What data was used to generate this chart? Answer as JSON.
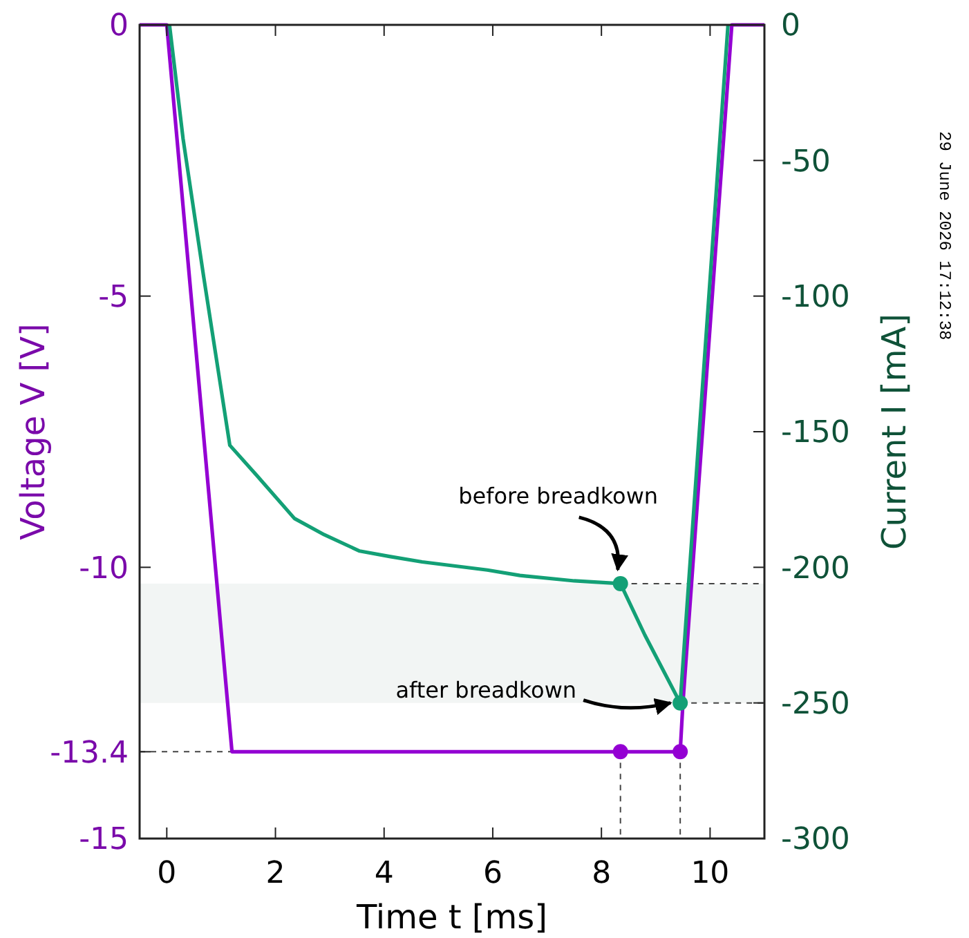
{
  "chart_data": {
    "type": "line",
    "xlabel": "Time t [ms]",
    "ylabel": "Voltage V [V]",
    "y2label": "Current I [mA]",
    "xlim": [
      -0.5,
      11
    ],
    "xticks": [
      0,
      2,
      4,
      6,
      8,
      10
    ],
    "ylim": [
      -15,
      0
    ],
    "yticks": [
      0,
      -5,
      -10,
      -13.4,
      -15
    ],
    "y2lim": [
      -300,
      0
    ],
    "y2ticks": [
      0,
      -50,
      -100,
      -150,
      -200,
      -250,
      -300
    ],
    "marker": "none",
    "line_style": "solid",
    "bands": [
      {
        "axis": "y2",
        "from": -250,
        "to": -206,
        "color": "#f2f5f4"
      }
    ],
    "ref_lines": [
      {
        "axis": "y",
        "value": -13.4,
        "color": "#444444",
        "line_style": "dashed"
      },
      {
        "axis": "x",
        "value": 8.35,
        "color": "#444444",
        "line_style": "dashed"
      },
      {
        "axis": "x",
        "value": 9.45,
        "color": "#444444",
        "line_style": "dashed"
      },
      {
        "axis": "y2",
        "value": -206,
        "color": "#444444",
        "line_style": "dashed"
      },
      {
        "axis": "y2",
        "value": -250,
        "color": "#444444",
        "line_style": "dashed"
      }
    ],
    "series": [
      {
        "axis": "y",
        "color": "#9400d3",
        "x": [
          -0.5,
          0,
          1.2,
          9.45,
          9.5,
          10.4,
          11
        ],
        "values": [
          0,
          0,
          -13.4,
          -13.4,
          -12.5,
          0,
          0
        ]
      },
      {
        "axis": "y2",
        "color": "#13a076",
        "x": [
          0.05,
          0.3,
          0.68,
          1.16,
          1.65,
          2.35,
          2.9,
          3.55,
          4.1,
          4.7,
          5.9,
          6.5,
          7.5,
          8.35,
          8.8,
          9.45,
          10.33
        ],
        "values": [
          0,
          -42,
          -93,
          -155,
          -166,
          -182,
          -188,
          -194,
          -196,
          -198,
          -201,
          -203,
          -205,
          -206,
          -225,
          -250,
          0
        ]
      },
      {
        "type": "scatter",
        "axis": "y",
        "color": "#9400d3",
        "marker": "circle",
        "x": [
          8.35,
          9.45
        ],
        "values": [
          -13.4,
          -13.4
        ]
      },
      {
        "type": "scatter",
        "axis": "y2",
        "color": "#13a076",
        "marker": "circle",
        "x": [
          8.35,
          9.45
        ],
        "values": [
          -206,
          -250
        ]
      }
    ],
    "annotations": [
      "before breadkown",
      {
        "text": "after breadkown",
        "x": 9.45,
        "y": -12.5
      },
      "29 June 2026 17:12:38"
    ]
  }
}
